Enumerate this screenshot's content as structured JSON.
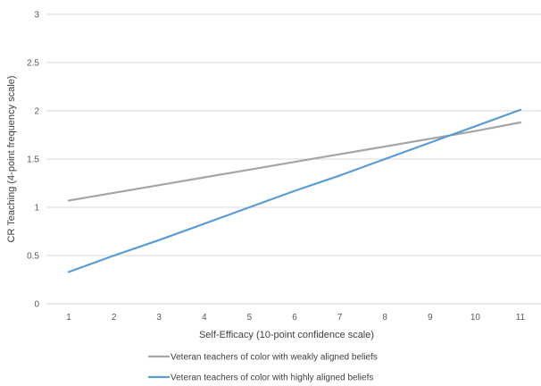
{
  "chart_data": {
    "type": "line",
    "x": [
      1,
      2,
      3,
      4,
      5,
      6,
      7,
      8,
      9,
      10,
      11
    ],
    "series": [
      {
        "name": "Veteran teachers of color with weakly aligned beliefs",
        "color": "#a5a5a5",
        "values": [
          1.07,
          1.15,
          1.23,
          1.31,
          1.39,
          1.47,
          1.55,
          1.63,
          1.71,
          1.79,
          1.88
        ]
      },
      {
        "name": "Veteran teachers of color with highly aligned beliefs",
        "color": "#5b9bd5",
        "values": [
          0.33,
          0.5,
          0.66,
          0.83,
          1.0,
          1.17,
          1.33,
          1.5,
          1.67,
          1.84,
          2.01
        ]
      }
    ],
    "xlabel": "Self-Efficacy (10-point confidence scale)",
    "ylabel": "CR Teaching (4-point frequency scale)",
    "xticks": [
      "1",
      "2",
      "3",
      "4",
      "5",
      "6",
      "7",
      "8",
      "9",
      "10",
      "11"
    ],
    "yticks": [
      "0",
      "0.5",
      "1",
      "1.5",
      "2",
      "2.5",
      "3"
    ],
    "ylim": [
      0,
      3
    ],
    "xlim": [
      1,
      11
    ],
    "grid": "horizontal",
    "gridline_color": "#d9d9d9",
    "legend_position": "bottom"
  }
}
